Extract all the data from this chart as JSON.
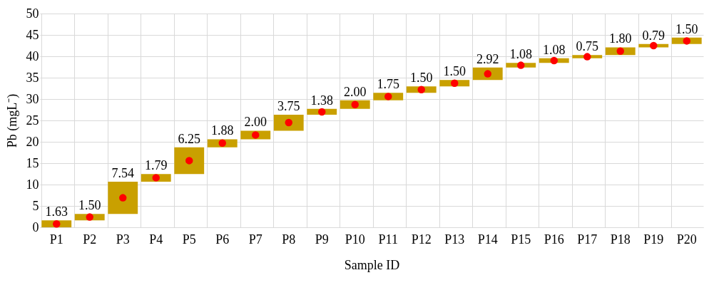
{
  "chart_data": {
    "type": "bar",
    "xlabel": "Sample ID",
    "ylabel": "Pb (mgL⁻)",
    "categories": [
      "P1",
      "P2",
      "P3",
      "P4",
      "P5",
      "P6",
      "P7",
      "P8",
      "P9",
      "P10",
      "P11",
      "P12",
      "P13",
      "P14",
      "P15",
      "P16",
      "P17",
      "P18",
      "P19",
      "P20"
    ],
    "series": [
      {
        "color": "#c9a000",
        "values": [
          1.63,
          1.5,
          7.54,
          1.79,
          6.25,
          1.88,
          2.0,
          3.75,
          1.38,
          2.0,
          1.75,
          1.5,
          1.5,
          2.92,
          1.08,
          1.08,
          0.75,
          1.8,
          0.79,
          1.5
        ],
        "base": [
          0,
          1.63,
          3.13,
          10.67,
          12.46,
          18.71,
          20.59,
          22.59,
          26.34,
          27.72,
          29.72,
          31.47,
          32.97,
          34.47,
          37.39,
          38.47,
          39.55,
          40.3,
          42.1,
          42.89
        ],
        "value_labels": [
          "1.63",
          "1.50",
          "7.54",
          "1.79",
          "6.25",
          "1.88",
          "2.00",
          "3.75",
          "1.38",
          "2.00",
          "1.75",
          "1.50",
          "1.50",
          "2.92",
          "1.08",
          "1.08",
          "0.75",
          "1.80",
          "0.79",
          "1.50"
        ]
      },
      {
        "type": "scatter",
        "color": "#ff0000",
        "marker": "circle",
        "x": [
          "P1",
          "P2",
          "P3",
          "P4",
          "P5",
          "P6",
          "P7",
          "P8",
          "P9",
          "P10",
          "P11",
          "P12",
          "P13",
          "P14",
          "P15",
          "P16",
          "P17",
          "P18",
          "P19",
          "P20"
        ],
        "values": [
          0.8,
          2.4,
          6.9,
          11.6,
          15.6,
          19.7,
          21.6,
          24.5,
          27.0,
          28.7,
          30.6,
          32.2,
          33.7,
          35.9,
          37.9,
          39.0,
          39.9,
          41.2,
          42.5,
          43.6
        ]
      }
    ],
    "ylim": [
      0,
      50
    ],
    "yticks": [
      0,
      5,
      10,
      15,
      20,
      25,
      30,
      35,
      40,
      45,
      50
    ],
    "grid": true
  }
}
